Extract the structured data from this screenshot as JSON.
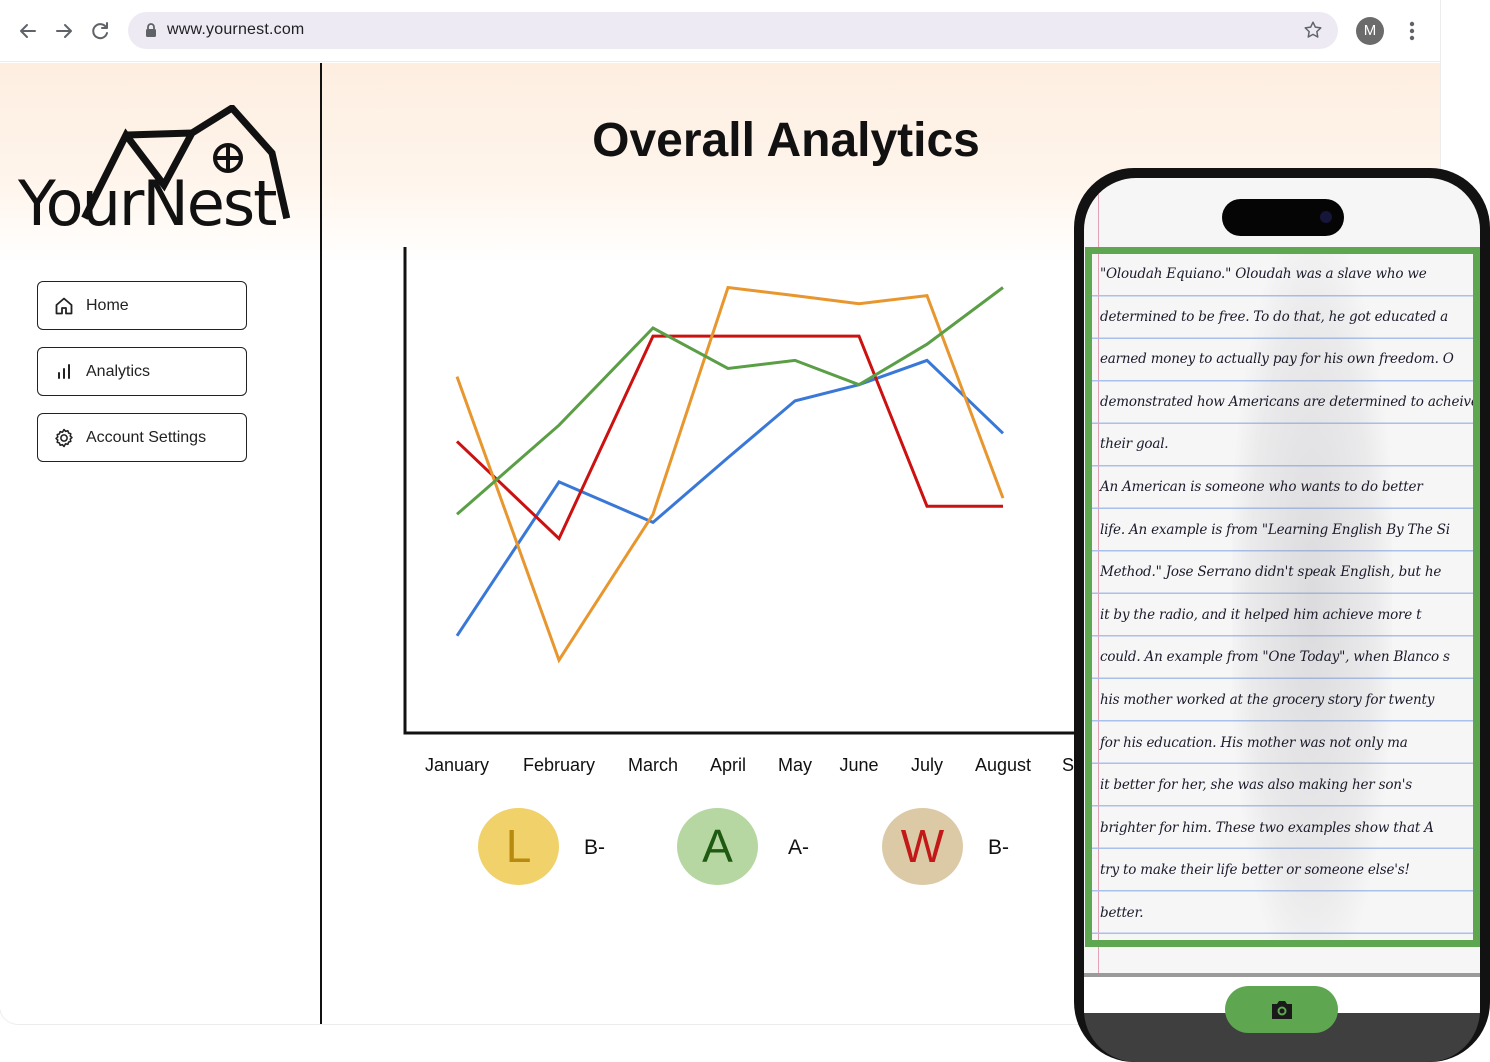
{
  "browser": {
    "url": "www.yournest.com",
    "profile_initial": "M",
    "icons": {
      "back": "back-arrow-icon",
      "forward": "forward-arrow-icon",
      "reload": "reload-icon",
      "lock": "lock-icon",
      "star": "star-icon",
      "menu": "kebab-menu-icon"
    }
  },
  "sidebar": {
    "logo_text": "YourNest",
    "items": [
      {
        "label": "Home",
        "icon": "home-icon"
      },
      {
        "label": "Analytics",
        "icon": "bar-chart-icon"
      },
      {
        "label": "Account Settings",
        "icon": "gear-icon"
      }
    ]
  },
  "main": {
    "title": "Overall Analytics"
  },
  "chart_data": {
    "type": "line",
    "categories": [
      "January",
      "February",
      "March",
      "April",
      "May",
      "June",
      "July",
      "August",
      "S"
    ],
    "series": [
      {
        "color": "#3a78d8",
        "values": [
          1.2,
          3.1,
          2.6,
          3.4,
          4.1,
          4.3,
          4.6,
          3.7,
          null
        ]
      },
      {
        "color": "#cc1111",
        "values": [
          3.6,
          2.4,
          4.9,
          4.9,
          4.9,
          4.9,
          2.8,
          2.8,
          null
        ]
      },
      {
        "color": "#e8962e",
        "values": [
          4.4,
          0.9,
          2.7,
          5.5,
          5.4,
          5.3,
          5.4,
          2.9,
          null
        ]
      },
      {
        "color": "#5a9e45",
        "values": [
          2.7,
          3.8,
          5.0,
          4.5,
          4.6,
          4.3,
          4.8,
          5.5,
          null
        ]
      }
    ],
    "xlabel": "",
    "ylabel": "",
    "ylim": [
      0,
      6
    ],
    "grid": false
  },
  "grades": [
    {
      "letter": "L",
      "grade": "B-",
      "bg": "#f0d16a",
      "color": "#b88a10"
    },
    {
      "letter": "A",
      "grade": "A-",
      "bg": "#b6d6a2",
      "color": "#1e5a12"
    },
    {
      "letter": "W",
      "grade": "B-",
      "bg": "#dccaa6",
      "color": "#c21818"
    }
  ],
  "phone": {
    "handwriting": [
      "\"Oloudah Equiano.\" Oloudah was a slave who we",
      "determined to be free. To do that, he got educated a",
      "earned money to actually pay for his own freedom. O",
      "demonstrated how Americans are determined to acheive",
      "their goal.",
      "    An American is someone who wants to do better",
      "life. An example is from \"Learning English By The Si",
      "Method.\" Jose Serrano didn't speak English, but he",
      "it by the radio, and it helped him achieve more t",
      "could. An example from \"One Today\", when Blanco s",
      "his mother worked at the grocery story for twenty",
      "for his education. His mother was not only ma",
      "it better for her, she was also making her son's",
      "brighter for him. These two examples show that A",
      "try to make their life better or someone else's!",
      "better."
    ],
    "capture_icon": "camera-icon"
  }
}
